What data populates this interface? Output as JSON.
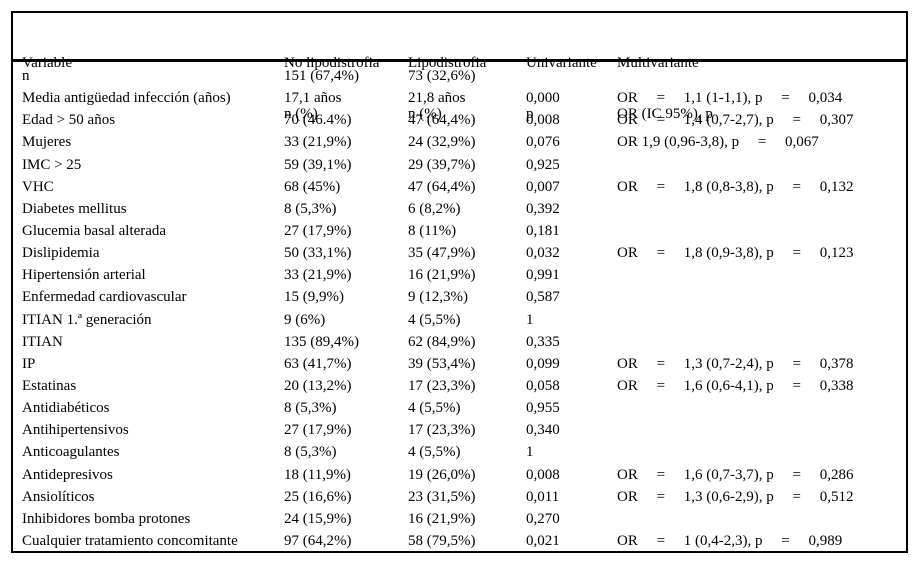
{
  "table": {
    "columns": [
      {
        "line1": "Variable",
        "line2": ""
      },
      {
        "line1": "No lipodistrofia",
        "line2": "n (%)"
      },
      {
        "line1": "Lipodistrofia",
        "line2": "n (%)"
      },
      {
        "line1": "Univariante",
        "line2": "p"
      },
      {
        "line1": "Multivariante",
        "line2": "OR (IC 95%), p"
      }
    ],
    "rows": [
      {
        "variable": "n",
        "no_lipo": "151 (67,4%)",
        "lipo": "73 (32,6%)",
        "univariante_p": "",
        "multivariante": ""
      },
      {
        "variable": "Media antigüedad infección (años)",
        "no_lipo": "17,1 años",
        "lipo": "21,8 años",
        "univariante_p": "0,000",
        "multivariante": "OR     =     1,1 (1-1,1), p     =     0,034"
      },
      {
        "variable": "Edad > 50 años",
        "no_lipo": "70 (46.4%)",
        "lipo": "47 (64,4%)",
        "univariante_p": "0,008",
        "multivariante": "OR     =     1,4 (0,7-2,7), p     =     0,307"
      },
      {
        "variable": "Mujeres",
        "no_lipo": "33 (21,9%)",
        "lipo": "24 (32,9%)",
        "univariante_p": "0,076",
        "multivariante": "OR 1,9 (0,96-3,8), p     =     0,067"
      },
      {
        "variable": "IMC > 25",
        "no_lipo": "59 (39,1%)",
        "lipo": "29 (39,7%)",
        "univariante_p": "0,925",
        "multivariante": ""
      },
      {
        "variable": "VHC",
        "no_lipo": "68 (45%)",
        "lipo": "47 (64,4%)",
        "univariante_p": "0,007",
        "multivariante": "OR     =     1,8 (0,8-3,8), p     =     0,132"
      },
      {
        "variable": "Diabetes mellitus",
        "no_lipo": "8 (5,3%)",
        "lipo": "6 (8,2%)",
        "univariante_p": "0,392",
        "multivariante": ""
      },
      {
        "variable": "Glucemia basal alterada",
        "no_lipo": "27 (17,9%)",
        "lipo": "8 (11%)",
        "univariante_p": "0,181",
        "multivariante": ""
      },
      {
        "variable": "Dislipidemia",
        "no_lipo": "50 (33,1%)",
        "lipo": "35 (47,9%)",
        "univariante_p": "0,032",
        "multivariante": "OR     =     1,8 (0,9-3,8), p     =     0,123"
      },
      {
        "variable": "Hipertensión arterial",
        "no_lipo": "33 (21,9%)",
        "lipo": "16 (21,9%)",
        "univariante_p": "0,991",
        "multivariante": ""
      },
      {
        "variable": "Enfermedad cardiovascular",
        "no_lipo": "15 (9,9%)",
        "lipo": "9 (12,3%)",
        "univariante_p": "0,587",
        "multivariante": ""
      },
      {
        "variable": "ITIAN 1.ª generación",
        "no_lipo": "9 (6%)",
        "lipo": "4 (5,5%)",
        "univariante_p": "1",
        "multivariante": ""
      },
      {
        "variable": "ITIAN",
        "no_lipo": "135 (89,4%)",
        "lipo": "62 (84,9%)",
        "univariante_p": "0,335",
        "multivariante": ""
      },
      {
        "variable": "IP",
        "no_lipo": "63 (41,7%)",
        "lipo": "39 (53,4%)",
        "univariante_p": "0,099",
        "multivariante": "OR     =     1,3 (0,7-2,4), p     =     0,378"
      },
      {
        "variable": "Estatinas",
        "no_lipo": "20 (13,2%)",
        "lipo": "17 (23,3%)",
        "univariante_p": "0,058",
        "multivariante": "OR     =     1,6 (0,6-4,1), p     =     0,338"
      },
      {
        "variable": "Antidiabéticos",
        "no_lipo": "8 (5,3%)",
        "lipo": "4 (5,5%)",
        "univariante_p": "0,955",
        "multivariante": ""
      },
      {
        "variable": "Antihipertensivos",
        "no_lipo": "27 (17,9%)",
        "lipo": "17 (23,3%)",
        "univariante_p": "0,340",
        "multivariante": ""
      },
      {
        "variable": "Anticoagulantes",
        "no_lipo": "8 (5,3%)",
        "lipo": "4 (5,5%)",
        "univariante_p": "1",
        "multivariante": ""
      },
      {
        "variable": "Antidepresivos",
        "no_lipo": "18 (11,9%)",
        "lipo": "19 (26,0%)",
        "univariante_p": "0,008",
        "multivariante": "OR     =     1,6 (0,7-3,7), p     =     0,286"
      },
      {
        "variable": "Ansiolíticos",
        "no_lipo": "25 (16,6%)",
        "lipo": "23 (31,5%)",
        "univariante_p": "0,011",
        "multivariante": "OR     =     1,3 (0,6-2,9), p     =     0,512"
      },
      {
        "variable": "Inhibidores bomba protones",
        "no_lipo": "24 (15,9%)",
        "lipo": "16 (21,9%)",
        "univariante_p": "0,270",
        "multivariante": ""
      },
      {
        "variable": "Cualquier tratamiento concomitante",
        "no_lipo": "97 (64,2%)",
        "lipo": "58 (79,5%)",
        "univariante_p": "0,021",
        "multivariante": "OR     =     1 (0,4-2,3), p     =     0,989"
      }
    ]
  }
}
